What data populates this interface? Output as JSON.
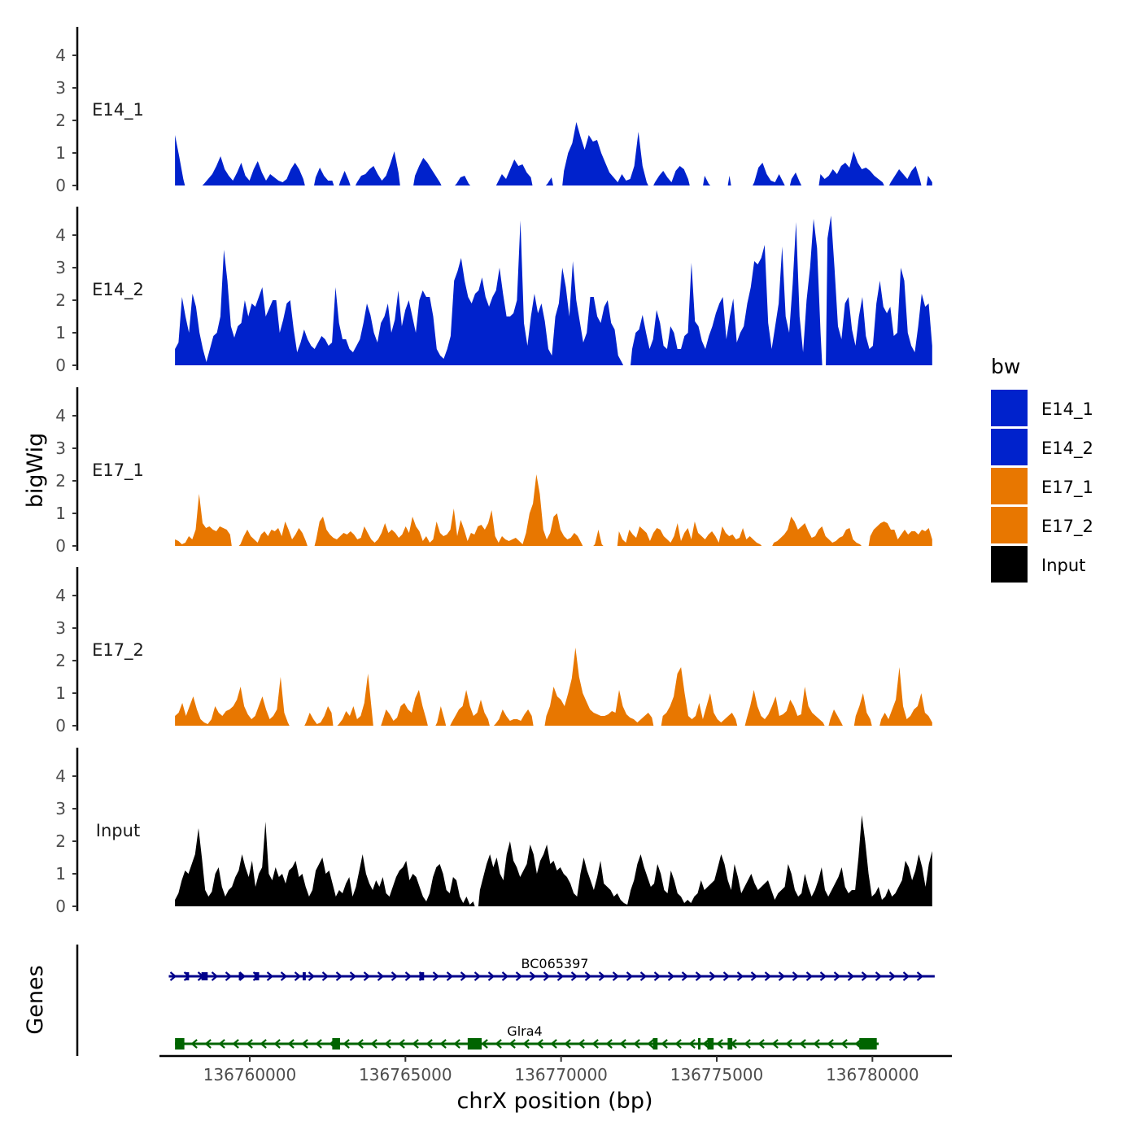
{
  "chart_data": {
    "type": "area",
    "y_axis_title": "bigWig",
    "x_axis_title": "chrX position (bp)",
    "genes_axis_title": "Genes",
    "ylim": [
      0,
      5
    ],
    "yticks": [
      0,
      1,
      2,
      3,
      4
    ],
    "xlim": [
      136757100,
      136782500
    ],
    "xticks": [
      136760000,
      136765000,
      136770000,
      136775000,
      136780000
    ],
    "xtick_labels": [
      "136760000",
      "136765000",
      "136770000",
      "136775000",
      "136780000"
    ],
    "x_start": 136757600,
    "x_end": 136781920,
    "legend": {
      "title": "bw",
      "entries": [
        {
          "label": "E14_1",
          "color": "#0022cc"
        },
        {
          "label": "E14_2",
          "color": "#0022cc"
        },
        {
          "label": "E17_1",
          "color": "#e87700"
        },
        {
          "label": "E17_2",
          "color": "#e87700"
        },
        {
          "label": "Input",
          "color": "#000000"
        }
      ]
    },
    "series": [
      {
        "name": "E14_1",
        "color": "#0022cc",
        "values": [
          1.55,
          0.9,
          0.2,
          null,
          null,
          null,
          null,
          0.05,
          0.2,
          0.35,
          0.6,
          0.9,
          0.5,
          0.3,
          0.15,
          0.4,
          0.7,
          0.3,
          0.15,
          0.5,
          0.75,
          0.4,
          0.15,
          0.35,
          0.25,
          0.15,
          0.1,
          0.2,
          0.5,
          0.7,
          0.5,
          0.2,
          null,
          null,
          0.25,
          0.55,
          0.3,
          0.15,
          0.15,
          null,
          0.15,
          0.45,
          0.15,
          null,
          0.1,
          0.3,
          0.35,
          0.5,
          0.6,
          0.35,
          0.15,
          0.3,
          0.65,
          1.05,
          0.4,
          null,
          null,
          null,
          0.3,
          0.6,
          0.85,
          0.7,
          0.5,
          0.3,
          0.1,
          null,
          null,
          null,
          0.05,
          0.25,
          0.3,
          0.05,
          null,
          null,
          null,
          null,
          null,
          null,
          0.1,
          0.35,
          0.2,
          0.5,
          0.8,
          0.6,
          0.65,
          0.4,
          0.25,
          null,
          null,
          null,
          0.05,
          0.25,
          null,
          null,
          0.45,
          1.0,
          1.3,
          1.95,
          1.5,
          1.1,
          1.55,
          1.35,
          1.4,
          1.0,
          0.7,
          0.4,
          0.25,
          0.1,
          0.35,
          0.15,
          0.2,
          0.6,
          1.65,
          0.6,
          0.1,
          null,
          0.1,
          0.3,
          0.45,
          0.25,
          0.1,
          0.45,
          0.6,
          0.5,
          0.2,
          null,
          null,
          null,
          0.3,
          0.05,
          null,
          null,
          null,
          null,
          0.3,
          null,
          null,
          null,
          null,
          null,
          0.1,
          0.55,
          0.7,
          0.35,
          0.15,
          0.1,
          0.35,
          0.1,
          null,
          0.2,
          0.4,
          0.1,
          null,
          null,
          null,
          null,
          0.35,
          0.2,
          0.3,
          0.5,
          0.35,
          0.6,
          0.7,
          0.55,
          1.05,
          0.7,
          0.5,
          0.55,
          0.45,
          0.3,
          0.2,
          0.1,
          null,
          0.1,
          0.3,
          0.5,
          0.35,
          0.2,
          0.45,
          0.6,
          0.2,
          null,
          0.3,
          0.1
        ]
      },
      {
        "name": "E14_2",
        "color": "#0022cc",
        "values": [
          0.5,
          0.7,
          2.1,
          1.5,
          1.0,
          2.2,
          1.8,
          1.0,
          0.5,
          0.1,
          0.5,
          0.9,
          1.0,
          1.5,
          3.55,
          2.6,
          1.2,
          0.85,
          1.2,
          1.3,
          2.0,
          1.5,
          1.9,
          1.8,
          2.1,
          2.4,
          1.5,
          1.75,
          2.0,
          2.0,
          1.0,
          1.4,
          1.9,
          2.0,
          1.1,
          0.4,
          0.7,
          1.1,
          0.8,
          0.6,
          0.5,
          0.7,
          0.9,
          0.8,
          0.6,
          0.7,
          2.4,
          1.3,
          0.8,
          0.8,
          0.5,
          0.4,
          0.6,
          0.8,
          1.3,
          1.9,
          1.55,
          1.0,
          0.7,
          1.3,
          1.5,
          1.9,
          1.0,
          1.4,
          2.3,
          1.2,
          1.7,
          2.0,
          1.5,
          1.0,
          2.0,
          2.3,
          2.1,
          2.1,
          1.5,
          0.5,
          0.3,
          0.2,
          0.5,
          0.9,
          2.6,
          2.9,
          3.3,
          2.6,
          2.1,
          1.9,
          2.2,
          2.3,
          2.7,
          2.1,
          1.8,
          2.1,
          2.3,
          3.0,
          2.2,
          1.5,
          1.5,
          1.6,
          2.0,
          4.45,
          1.3,
          0.6,
          1.5,
          2.2,
          1.6,
          1.9,
          1.35,
          0.5,
          0.3,
          1.5,
          1.9,
          3.0,
          2.4,
          1.5,
          3.2,
          2.0,
          1.35,
          0.7,
          1.0,
          2.1,
          2.1,
          1.5,
          1.3,
          1.8,
          2.0,
          1.3,
          1.1,
          0.3,
          0.1,
          null,
          null,
          0.5,
          1.0,
          1.1,
          1.55,
          1.0,
          0.5,
          0.8,
          1.7,
          1.3,
          0.6,
          0.5,
          1.2,
          1.0,
          0.5,
          0.5,
          0.9,
          1.0,
          3.15,
          1.35,
          1.2,
          0.75,
          0.5,
          0.9,
          1.2,
          1.6,
          1.9,
          2.1,
          0.8,
          1.5,
          2.05,
          0.7,
          1.0,
          1.2,
          1.9,
          2.4,
          3.2,
          3.1,
          3.3,
          3.7,
          1.3,
          0.5,
          1.2,
          1.9,
          3.65,
          1.5,
          1.0,
          2.5,
          4.4,
          1.5,
          0.4,
          2.0,
          3.0,
          4.5,
          3.6,
          1.0,
          null,
          3.9,
          4.6,
          3.0,
          1.2,
          0.8,
          1.9,
          2.1,
          1.1,
          0.6,
          1.5,
          2.1,
          0.9,
          0.5,
          0.6,
          1.9,
          2.6,
          1.8,
          1.6,
          1.8,
          0.9,
          1.0,
          3.0,
          2.6,
          1.0,
          0.6,
          0.4,
          1.2,
          2.2,
          1.8,
          1.9,
          0.6
        ]
      },
      {
        "name": "E17_1",
        "color": "#e87700",
        "values": [
          0.2,
          0.15,
          0.05,
          0.1,
          0.3,
          0.2,
          0.5,
          1.6,
          0.7,
          0.55,
          0.6,
          0.5,
          0.45,
          0.6,
          0.55,
          0.5,
          0.35,
          null,
          null,
          0.05,
          0.3,
          0.5,
          0.3,
          0.2,
          0.1,
          0.35,
          0.45,
          0.3,
          0.5,
          0.45,
          0.55,
          0.3,
          0.75,
          0.5,
          0.2,
          0.35,
          0.55,
          0.4,
          0.15,
          null,
          null,
          0.2,
          0.75,
          0.9,
          0.5,
          0.35,
          0.25,
          0.2,
          0.3,
          0.4,
          0.35,
          0.45,
          0.35,
          0.2,
          0.25,
          0.6,
          0.4,
          0.2,
          0.1,
          0.2,
          0.4,
          0.7,
          0.4,
          0.5,
          0.4,
          0.25,
          0.35,
          0.6,
          0.4,
          0.9,
          0.6,
          0.45,
          0.15,
          0.3,
          0.1,
          0.2,
          0.75,
          0.4,
          0.3,
          0.35,
          0.5,
          1.15,
          0.3,
          0.8,
          0.5,
          0.15,
          0.4,
          0.35,
          0.6,
          0.65,
          0.5,
          0.7,
          1.1,
          0.3,
          0.1,
          0.3,
          0.2,
          0.15,
          0.2,
          0.25,
          0.15,
          0.05,
          0.4,
          1.0,
          1.3,
          2.2,
          1.6,
          0.5,
          0.2,
          0.4,
          0.9,
          1.0,
          0.5,
          0.3,
          0.2,
          0.25,
          0.4,
          0.3,
          0.1,
          null,
          null,
          null,
          0.05,
          0.5,
          0.05,
          null,
          null,
          null,
          null,
          0.45,
          0.2,
          0.1,
          0.5,
          0.35,
          0.25,
          0.6,
          0.5,
          0.4,
          0.15,
          0.4,
          0.55,
          0.5,
          0.3,
          0.2,
          0.1,
          0.3,
          0.7,
          0.15,
          0.4,
          0.55,
          0.2,
          0.75,
          0.4,
          0.3,
          0.2,
          0.35,
          0.45,
          0.3,
          0.1,
          0.6,
          0.4,
          0.3,
          0.35,
          0.2,
          0.25,
          0.55,
          0.2,
          0.3,
          0.2,
          0.1,
          0.05,
          null,
          null,
          null,
          0.1,
          0.15,
          0.25,
          0.35,
          0.5,
          0.9,
          0.75,
          0.5,
          0.6,
          0.7,
          0.45,
          0.25,
          0.3,
          0.5,
          0.6,
          0.3,
          0.2,
          0.1,
          0.15,
          0.25,
          0.3,
          0.5,
          0.55,
          0.2,
          0.1,
          0.05,
          null,
          null,
          0.3,
          0.5,
          0.6,
          0.7,
          0.75,
          0.7,
          0.5,
          0.5,
          0.2,
          0.35,
          0.5,
          0.35,
          0.45,
          0.45,
          0.35,
          0.5,
          0.45,
          0.55,
          0.2
        ]
      },
      {
        "name": "E17_2",
        "color": "#e87700",
        "values": [
          0.3,
          0.4,
          0.7,
          0.3,
          0.6,
          0.9,
          0.5,
          0.2,
          0.1,
          0.05,
          0.2,
          0.6,
          0.4,
          0.3,
          0.45,
          0.5,
          0.6,
          0.8,
          1.2,
          0.6,
          0.35,
          0.2,
          0.3,
          0.6,
          0.9,
          0.5,
          0.2,
          0.3,
          0.5,
          1.5,
          0.4,
          0.1,
          null,
          null,
          null,
          null,
          0.1,
          0.4,
          0.2,
          0.05,
          0.1,
          0.3,
          0.6,
          0.4,
          null,
          0.05,
          0.2,
          0.45,
          0.3,
          0.6,
          0.2,
          0.3,
          0.7,
          1.6,
          0.5,
          null,
          null,
          0.15,
          0.5,
          0.35,
          0.15,
          0.25,
          0.6,
          0.7,
          0.5,
          0.4,
          0.85,
          1.1,
          0.6,
          0.2,
          null,
          null,
          0.1,
          0.6,
          0.2,
          null,
          0.1,
          0.3,
          0.5,
          0.6,
          1.1,
          0.6,
          0.3,
          0.4,
          0.8,
          0.4,
          0.2,
          null,
          0.05,
          0.2,
          0.5,
          0.3,
          0.15,
          0.2,
          0.2,
          0.15,
          0.35,
          0.5,
          0.3,
          null,
          null,
          null,
          0.3,
          0.6,
          1.2,
          0.9,
          0.8,
          0.6,
          1.0,
          1.45,
          2.4,
          1.5,
          1.0,
          0.75,
          0.5,
          0.4,
          0.35,
          0.3,
          0.3,
          0.35,
          0.45,
          0.4,
          1.1,
          0.6,
          0.35,
          0.25,
          0.2,
          0.1,
          0.2,
          0.3,
          0.4,
          0.25,
          null,
          null,
          0.3,
          0.4,
          0.6,
          0.9,
          1.6,
          1.8,
          1.0,
          0.3,
          0.2,
          0.3,
          0.7,
          0.2,
          0.6,
          1.0,
          0.4,
          0.2,
          0.1,
          0.2,
          0.3,
          0.4,
          0.2,
          null,
          null,
          0.2,
          0.6,
          1.1,
          0.6,
          0.3,
          0.2,
          0.35,
          0.6,
          0.9,
          0.3,
          0.35,
          0.45,
          0.8,
          0.6,
          0.3,
          0.35,
          1.2,
          0.6,
          0.4,
          0.3,
          0.2,
          0.1,
          null,
          0.2,
          0.5,
          0.3,
          0.1,
          null,
          null,
          null,
          0.3,
          0.6,
          1.0,
          0.4,
          0.2,
          null,
          null,
          0.2,
          0.4,
          0.2,
          0.5,
          0.8,
          1.8,
          0.6,
          0.2,
          0.3,
          0.5,
          0.6,
          1.0,
          0.4,
          0.3,
          0.1
        ]
      },
      {
        "name": "Input",
        "color": "#000000",
        "values": [
          0.2,
          0.4,
          0.8,
          1.1,
          1.0,
          1.3,
          1.6,
          2.4,
          1.5,
          0.5,
          0.3,
          0.45,
          1.0,
          1.2,
          0.6,
          0.3,
          0.5,
          0.6,
          0.9,
          1.1,
          1.6,
          1.2,
          0.9,
          1.4,
          0.6,
          1.0,
          1.2,
          2.6,
          1.0,
          0.8,
          1.2,
          0.9,
          1.0,
          0.7,
          1.1,
          1.2,
          1.4,
          0.9,
          1.0,
          0.6,
          0.3,
          0.5,
          1.1,
          1.3,
          1.5,
          1.0,
          1.1,
          0.7,
          0.3,
          0.5,
          0.4,
          0.7,
          0.9,
          0.3,
          0.6,
          1.1,
          1.6,
          1.0,
          0.7,
          0.5,
          0.8,
          0.6,
          0.9,
          0.4,
          0.3,
          0.6,
          0.9,
          1.1,
          1.2,
          1.4,
          0.8,
          1.0,
          0.9,
          0.6,
          0.3,
          0.15,
          0.4,
          0.9,
          1.2,
          1.3,
          1.0,
          0.5,
          0.4,
          0.9,
          0.8,
          0.3,
          0.1,
          0.3,
          0.05,
          0.15,
          null,
          0.5,
          0.9,
          1.3,
          1.6,
          1.2,
          1.5,
          1.0,
          0.8,
          1.6,
          2.0,
          1.4,
          1.2,
          0.9,
          1.1,
          1.3,
          1.9,
          1.6,
          1.0,
          1.4,
          1.6,
          1.9,
          1.3,
          1.4,
          1.1,
          1.2,
          1.0,
          0.9,
          0.7,
          0.4,
          0.3,
          1.0,
          1.5,
          1.1,
          0.8,
          0.5,
          0.9,
          1.4,
          0.7,
          0.6,
          0.5,
          0.3,
          0.4,
          0.2,
          0.1,
          0.05,
          0.5,
          0.8,
          1.3,
          1.6,
          1.2,
          0.9,
          0.6,
          0.7,
          1.3,
          1.0,
          0.5,
          0.4,
          1.1,
          0.8,
          0.4,
          0.3,
          0.1,
          0.2,
          0.1,
          0.3,
          0.4,
          0.8,
          0.5,
          0.6,
          0.7,
          0.8,
          1.2,
          1.6,
          1.3,
          0.8,
          0.5,
          1.3,
          0.9,
          0.4,
          0.6,
          0.8,
          1.0,
          0.7,
          0.5,
          0.6,
          0.7,
          0.8,
          0.5,
          0.2,
          0.4,
          0.5,
          0.6,
          1.3,
          1.0,
          0.5,
          0.3,
          0.4,
          1.0,
          0.6,
          0.3,
          0.5,
          0.8,
          1.2,
          0.5,
          0.3,
          0.5,
          0.7,
          0.9,
          1.2,
          0.6,
          0.4,
          0.5,
          0.5,
          1.5,
          2.8,
          2.0,
          1.0,
          0.3,
          0.4,
          0.6,
          0.2,
          0.3,
          0.55,
          0.3,
          0.4,
          0.6,
          0.8,
          1.4,
          1.2,
          0.8,
          1.1,
          1.6,
          1.2,
          0.6,
          1.3,
          1.7
        ]
      }
    ],
    "genes": [
      {
        "name": "BC065397",
        "strand": "+",
        "color": "#00008b",
        "start": 136757400,
        "end": 136782000,
        "exons": [
          [
            136757950,
            136758050
          ],
          [
            136758450,
            136758650
          ],
          [
            136759650,
            136759700
          ],
          [
            136760150,
            136760300
          ],
          [
            136761700,
            136761800
          ],
          [
            136765450,
            136765600
          ]
        ]
      },
      {
        "name": "Glra4",
        "strand": "-",
        "color": "#006400",
        "start": 136757600,
        "end": 136780200,
        "exons": [
          [
            136757600,
            136757900
          ],
          [
            136762650,
            136762900
          ],
          [
            136767000,
            136767450
          ],
          [
            136772950,
            136773100
          ],
          [
            136774400,
            136774450
          ],
          [
            136774700,
            136774900
          ],
          [
            136775350,
            136775500
          ],
          [
            136779580,
            136780140
          ]
        ]
      }
    ]
  }
}
